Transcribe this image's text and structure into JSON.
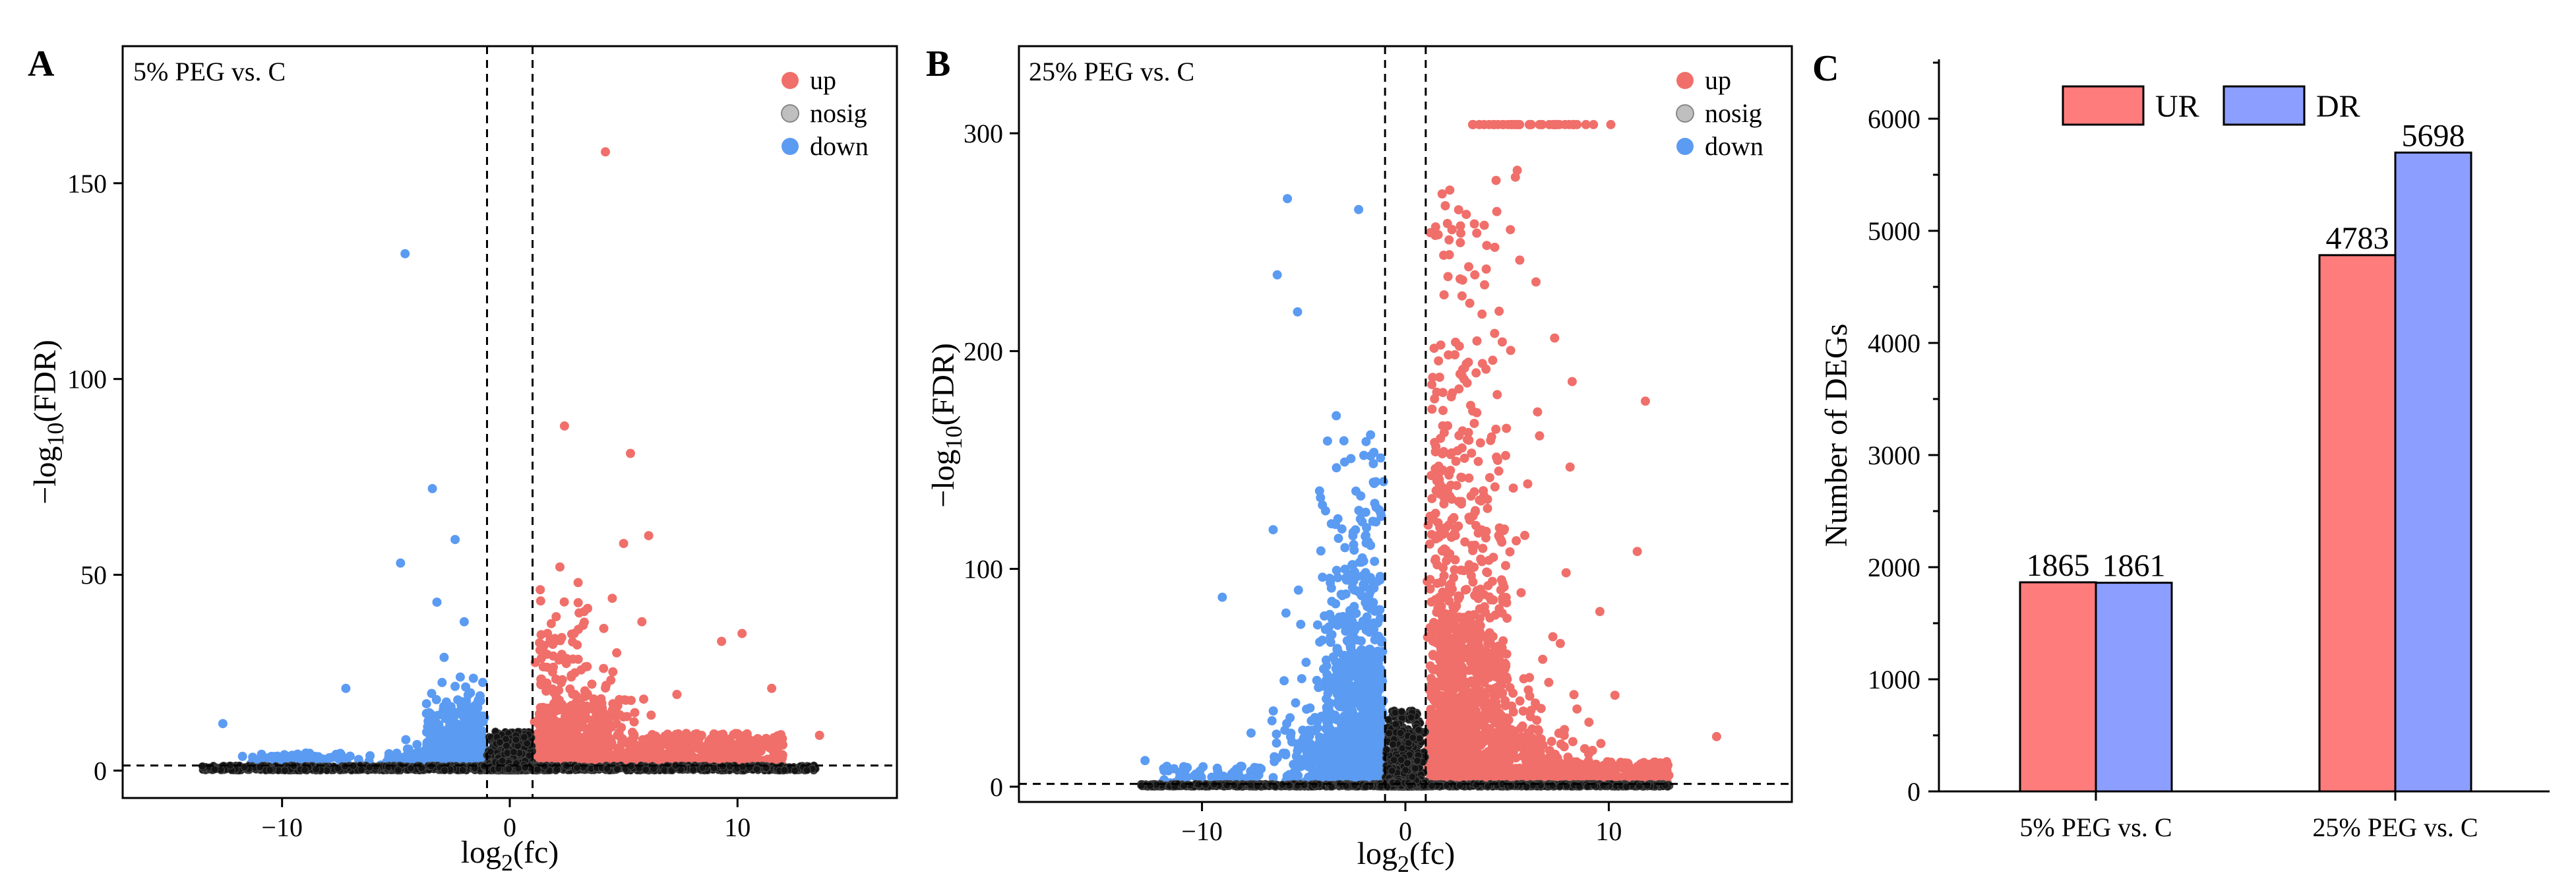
{
  "figure": {
    "panels": [
      {
        "letter": "A",
        "title": "5% PEG vs. C"
      },
      {
        "letter": "B",
        "title": "25% PEG vs. C"
      },
      {
        "letter": "C",
        "title": ""
      }
    ]
  },
  "chart_data": [
    {
      "id": "A",
      "type": "scatter",
      "title": "5% PEG vs. C",
      "xlabel": "log2(fc)",
      "ylabel": "-log10(FDR)",
      "xlim": [
        -17,
        17
      ],
      "ylim": [
        -7,
        185
      ],
      "xticks": [
        -10,
        0,
        10
      ],
      "yticks": [
        0,
        50,
        100,
        150
      ],
      "fc_threshold": 1,
      "fdr_cutoff_y": 1.3,
      "legend": [
        {
          "label": "up",
          "color": "#f06f6a"
        },
        {
          "label": "nosig",
          "color": "#bfbfbf"
        },
        {
          "label": "down",
          "color": "#5b9bf2"
        }
      ],
      "up_counts": 1865,
      "down_counts": 1861,
      "representative_points": {
        "up": [
          [
            4.2,
            158
          ],
          [
            2.4,
            88
          ],
          [
            5.3,
            81
          ],
          [
            6.1,
            60
          ],
          [
            5.0,
            58
          ],
          [
            2.2,
            52
          ],
          [
            3.0,
            48
          ],
          [
            4.5,
            44
          ],
          [
            5.8,
            38
          ],
          [
            10.2,
            35
          ],
          [
            9.3,
            33
          ],
          [
            11.5,
            21
          ],
          [
            13.6,
            9
          ]
        ],
        "down": [
          [
            -4.6,
            132
          ],
          [
            -3.4,
            72
          ],
          [
            -2.4,
            59
          ],
          [
            -4.8,
            53
          ],
          [
            -7.2,
            21
          ],
          [
            -12.6,
            12
          ],
          [
            -3.2,
            43
          ],
          [
            -2.0,
            38
          ]
        ]
      }
    },
    {
      "id": "B",
      "type": "scatter",
      "title": "25% PEG vs. C",
      "xlabel": "log2(fc)",
      "ylabel": "-log10(FDR)",
      "xlim": [
        -19,
        19
      ],
      "ylim": [
        -7,
        340
      ],
      "xticks": [
        -10,
        0,
        10
      ],
      "yticks": [
        0,
        100,
        200,
        300
      ],
      "fc_threshold": 1,
      "fdr_cutoff_y": 1.3,
      "legend": [
        {
          "label": "up",
          "color": "#f06f6a"
        },
        {
          "label": "nosig",
          "color": "#bfbfbf"
        },
        {
          "label": "down",
          "color": "#5b9bf2"
        }
      ],
      "up_counts": 4783,
      "down_counts": 5698,
      "saturation_y": 304,
      "representative_points": {
        "up": [
          [
            10.1,
            304
          ],
          [
            5.5,
            283
          ],
          [
            11.8,
            177
          ],
          [
            8.2,
            186
          ],
          [
            11.4,
            108
          ],
          [
            15.3,
            23
          ],
          [
            10.3,
            42
          ]
        ],
        "down": [
          [
            -5.8,
            270
          ],
          [
            -2.3,
            265
          ],
          [
            -6.3,
            235
          ],
          [
            -5.3,
            218
          ],
          [
            -9.0,
            87
          ],
          [
            -6.5,
            118
          ],
          [
            -12.8,
            12
          ]
        ]
      }
    },
    {
      "id": "C",
      "type": "bar",
      "title": "",
      "categories": [
        "5% PEG vs. C",
        "25% PEG vs. C"
      ],
      "series": [
        {
          "name": "UR",
          "values": [
            1865,
            4783
          ],
          "color": "#ff7c7c"
        },
        {
          "name": "DR",
          "values": [
            1861,
            5698
          ],
          "color": "#8c9eff"
        }
      ],
      "xlabel": "",
      "ylabel": "Number of DEGs",
      "ylim": [
        0,
        6500
      ],
      "yticks": [
        0,
        1000,
        2000,
        3000,
        4000,
        5000,
        6000
      ],
      "legend_position": "top"
    }
  ]
}
